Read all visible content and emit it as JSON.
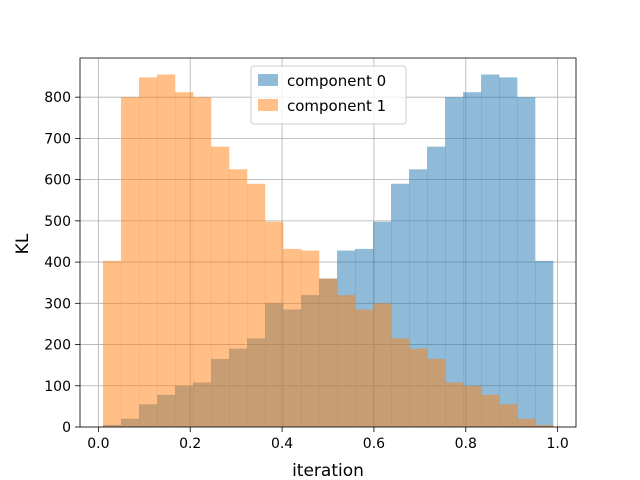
{
  "chart_data": {
    "type": "histogram",
    "xlabel": "iteration",
    "ylabel": "KL",
    "xlim": [
      -0.04,
      1.04
    ],
    "ylim": [
      0,
      895
    ],
    "xticks": [
      "0.0",
      "0.2",
      "0.4",
      "0.6",
      "0.8",
      "1.0"
    ],
    "xtick_values": [
      0.0,
      0.2,
      0.4,
      0.6,
      0.8,
      1.0
    ],
    "yticks": [
      "0",
      "100",
      "200",
      "300",
      "400",
      "500",
      "600",
      "700",
      "800"
    ],
    "ytick_values": [
      0,
      100,
      200,
      300,
      400,
      500,
      600,
      700,
      800
    ],
    "grid": true,
    "legend_position": "top-center",
    "bin_start": 0.01,
    "bin_width": 0.0392,
    "series": [
      {
        "name": "component 0",
        "color": "#1f77b4",
        "alpha": 0.5,
        "values": [
          5,
          20,
          55,
          78,
          100,
          108,
          165,
          190,
          215,
          300,
          285,
          320,
          360,
          428,
          432,
          498,
          590,
          625,
          680,
          800,
          812,
          855,
          848,
          800,
          403
        ]
      },
      {
        "name": "component 1",
        "color": "#ff7f0e",
        "alpha": 0.5,
        "values": [
          403,
          800,
          848,
          855,
          812,
          800,
          680,
          625,
          590,
          498,
          432,
          428,
          360,
          320,
          285,
          300,
          215,
          190,
          165,
          108,
          100,
          78,
          55,
          20,
          5
        ]
      }
    ]
  }
}
